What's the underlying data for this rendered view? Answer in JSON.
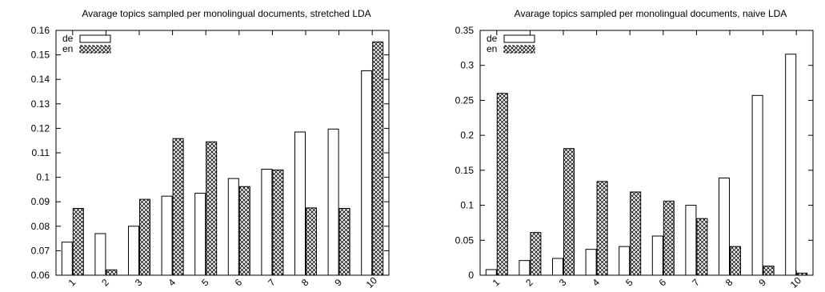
{
  "chart_data": [
    {
      "type": "bar",
      "title": "Avarage topics sampled per monolingual documents, stretched LDA",
      "xlabel": "",
      "ylabel": "",
      "categories": [
        "1",
        "2",
        "3",
        "4",
        "5",
        "6",
        "7",
        "8",
        "9",
        "10"
      ],
      "ylim": [
        0.06,
        0.16
      ],
      "yticks": [
        "0.06",
        "0.07",
        "0.08",
        "0.09",
        "0.1",
        "0.11",
        "0.12",
        "0.13",
        "0.14",
        "0.15",
        "0.16"
      ],
      "legend": "top-left",
      "grid": false,
      "series": [
        {
          "name": "de",
          "style": "hollow",
          "values": [
            0.0735,
            0.077,
            0.08,
            0.0923,
            0.0935,
            0.0995,
            0.1033,
            0.1185,
            0.1197,
            0.1435
          ]
        },
        {
          "name": "en",
          "style": "crosshatch",
          "values": [
            0.0873,
            0.0622,
            0.091,
            0.1158,
            0.1145,
            0.0962,
            0.103,
            0.0875,
            0.0873,
            0.1553
          ]
        }
      ]
    },
    {
      "type": "bar",
      "title": "Avarage topics sampled per monolingual documents, naive LDA",
      "xlabel": "",
      "ylabel": "",
      "categories": [
        "1",
        "2",
        "3",
        "4",
        "5",
        "6",
        "7",
        "8",
        "9",
        "10"
      ],
      "ylim": [
        0,
        0.35
      ],
      "yticks": [
        "0",
        "0.05",
        "0.1",
        "0.15",
        "0.2",
        "0.25",
        "0.3",
        "0.35"
      ],
      "legend": "top-left",
      "grid": false,
      "series": [
        {
          "name": "de",
          "style": "hollow",
          "values": [
            0.008,
            0.021,
            0.024,
            0.037,
            0.041,
            0.056,
            0.1,
            0.139,
            0.257,
            0.316
          ]
        },
        {
          "name": "en",
          "style": "crosshatch",
          "values": [
            0.26,
            0.061,
            0.181,
            0.134,
            0.119,
            0.106,
            0.081,
            0.041,
            0.013,
            0.003
          ]
        }
      ]
    }
  ]
}
